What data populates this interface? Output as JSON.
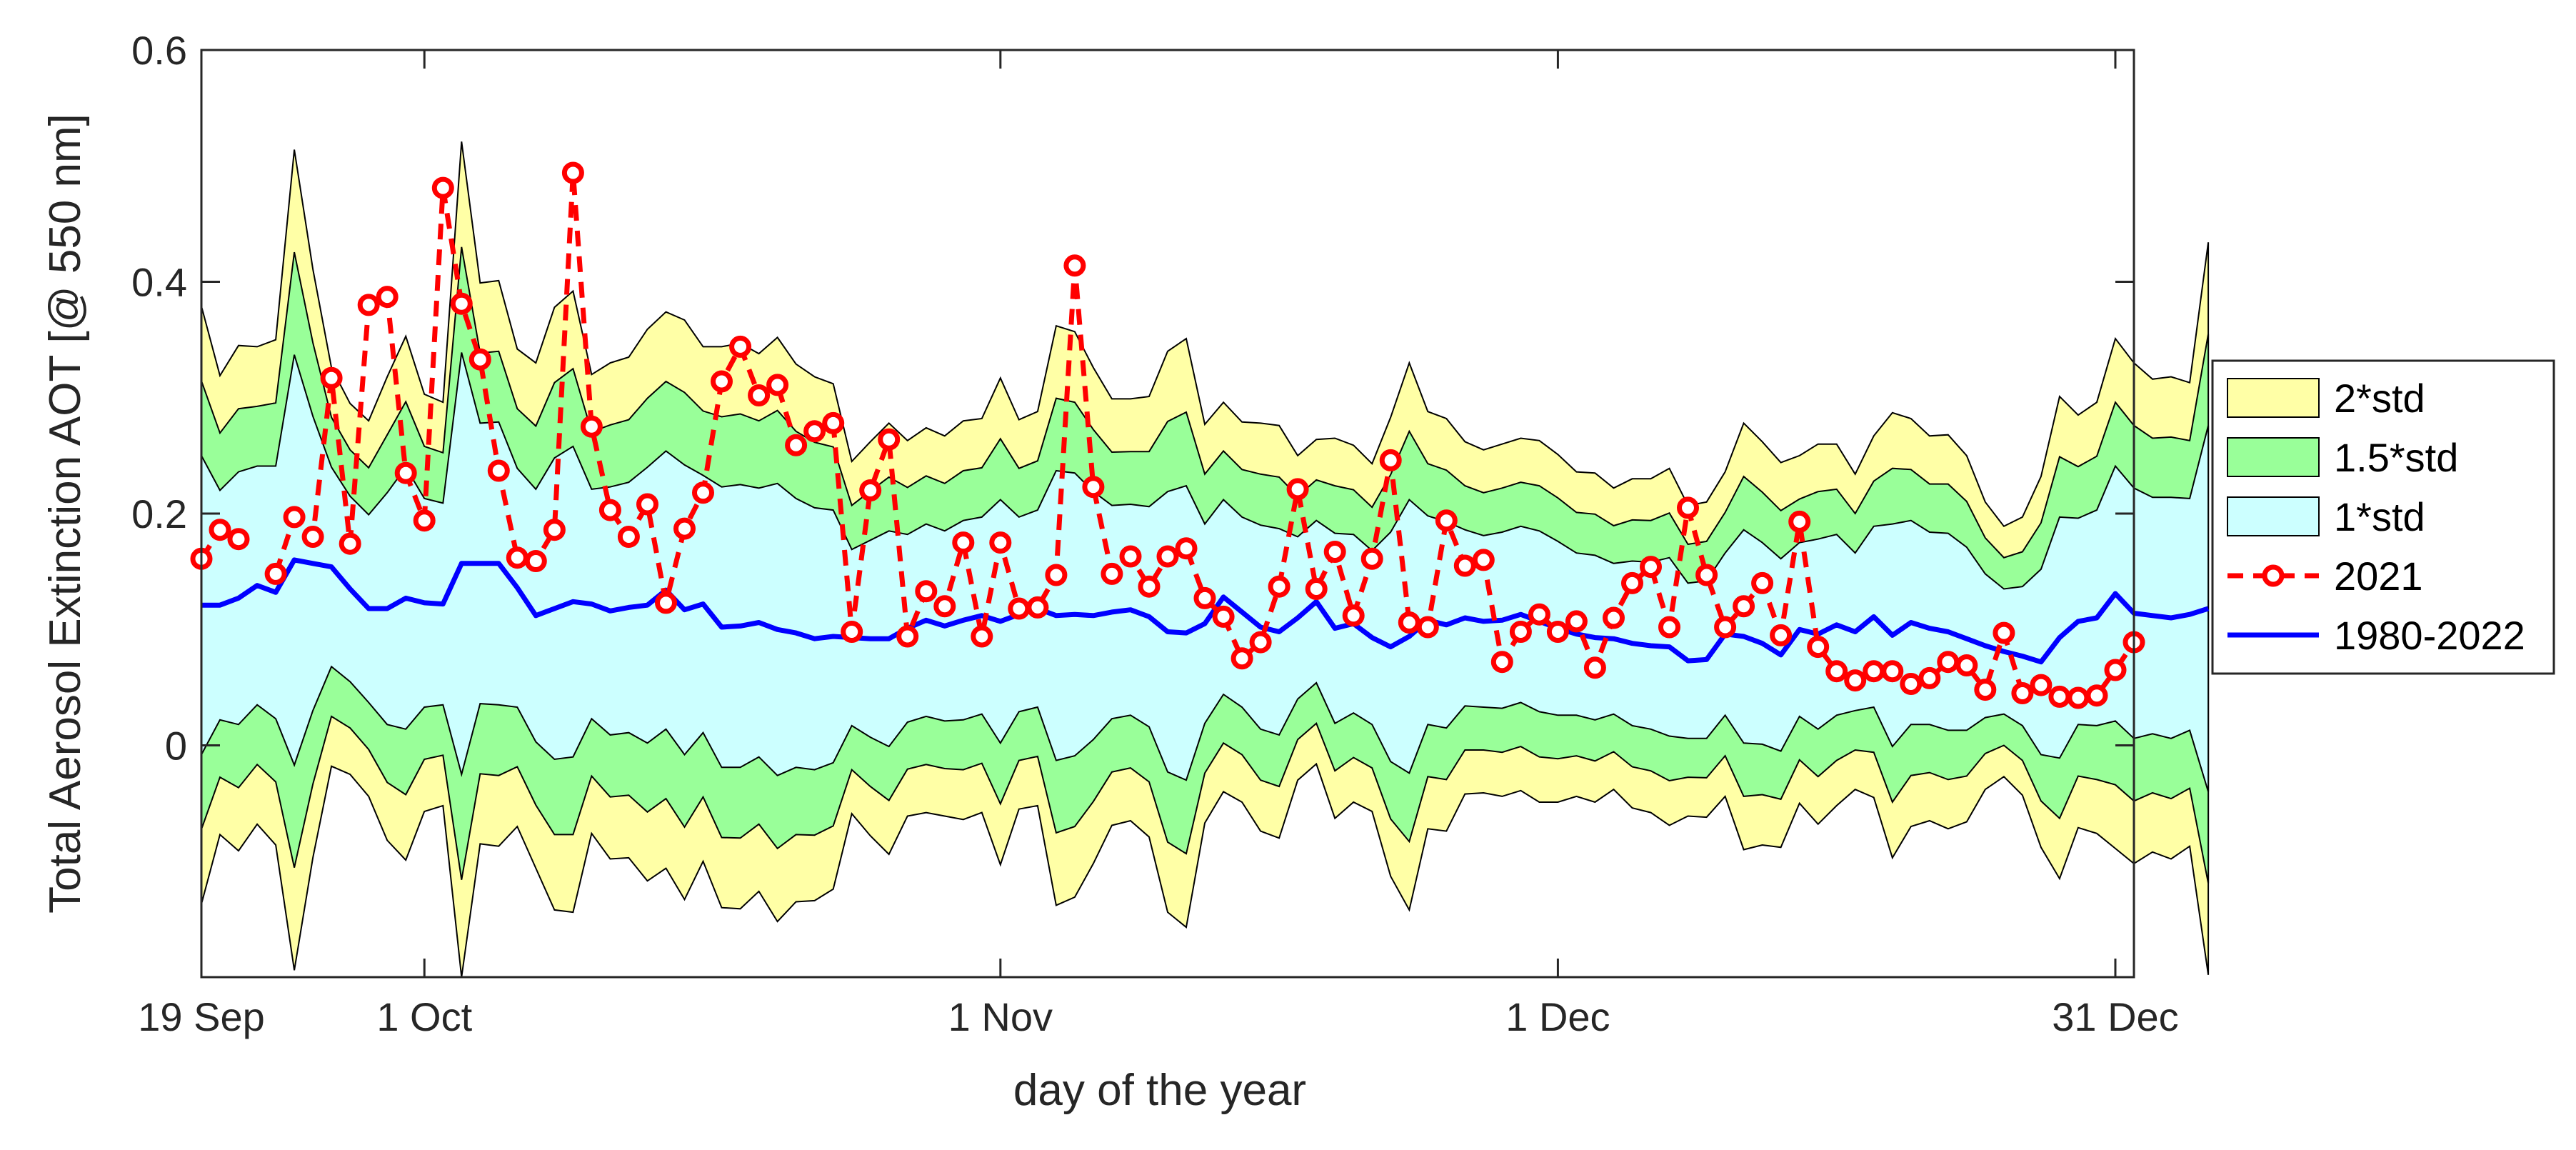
{
  "chart_data": {
    "type": "area",
    "xlabel": "day of the year",
    "ylabel": "Total Aerosol Extinction AOT [@ 550 nm]",
    "xlim": [
      "2021-09-19",
      "2022-01-01"
    ],
    "ylim": [
      -0.2,
      0.6
    ],
    "x_ticks": [
      {
        "date": "2021-09-19",
        "label": "19 Sep"
      },
      {
        "date": "2021-10-01",
        "label": "1 Oct"
      },
      {
        "date": "2021-11-01",
        "label": "1 Nov"
      },
      {
        "date": "2021-12-01",
        "label": "1 Dec"
      },
      {
        "date": "2021-12-31",
        "label": "31 Dec"
      }
    ],
    "y_ticks": [
      {
        "value": 0,
        "label": "0"
      },
      {
        "value": 0.2,
        "label": "0.2"
      },
      {
        "value": 0.4,
        "label": "0.4"
      },
      {
        "value": 0.6,
        "label": "0.6"
      }
    ],
    "legend_position": "right",
    "grid": false,
    "colors": {
      "band_2std": "#ffffa6",
      "band_15std": "#99ff99",
      "band_1std": "#ccffff",
      "series_2021": "#ff0000",
      "series_clim": "#0000ff"
    },
    "legend": [
      {
        "key": "std2",
        "label": "2*std"
      },
      {
        "key": "std15",
        "label": "1.5*std"
      },
      {
        "key": "std1",
        "label": "1*std"
      },
      {
        "key": "y2021",
        "label": "2021"
      },
      {
        "key": "clim",
        "label": "1980-2022"
      }
    ],
    "start_date": "2021-09-19",
    "series": [
      {
        "name": "1980-2022",
        "values": [
          0.121,
          0.121,
          0.127,
          0.138,
          0.132,
          0.16,
          0.157,
          0.154,
          0.135,
          0.118,
          0.118,
          0.127,
          0.123,
          0.122,
          0.157,
          0.157,
          0.157,
          0.136,
          0.112,
          0.118,
          0.124,
          0.122,
          0.116,
          0.119,
          0.121,
          0.134,
          0.117,
          0.122,
          0.102,
          0.103,
          0.106,
          0.1,
          0.097,
          0.092,
          0.094,
          0.093,
          0.092,
          0.092,
          0.101,
          0.108,
          0.103,
          0.108,
          0.112,
          0.107,
          0.113,
          0.118,
          0.112,
          0.113,
          0.112,
          0.115,
          0.117,
          0.111,
          0.098,
          0.097,
          0.105,
          0.128,
          0.115,
          0.102,
          0.098,
          0.11,
          0.124,
          0.101,
          0.105,
          0.093,
          0.085,
          0.094,
          0.108,
          0.104,
          0.11,
          0.107,
          0.108,
          0.113,
          0.107,
          0.101,
          0.096,
          0.093,
          0.092,
          0.088,
          0.086,
          0.085,
          0.073,
          0.074,
          0.096,
          0.094,
          0.088,
          0.078,
          0.1,
          0.096,
          0.104,
          0.098,
          0.111,
          0.095,
          0.106,
          0.101,
          0.098,
          0.092,
          0.086,
          0.081,
          0.077,
          0.072,
          0.093,
          0.107,
          0.11,
          0.131,
          0.114,
          0.112,
          0.11,
          0.113,
          0.118
        ]
      },
      {
        "name": "2021",
        "values": [
          0.161,
          0.186,
          0.178,
          null,
          0.148,
          0.197,
          0.18,
          0.317,
          0.174,
          0.38,
          0.387,
          0.235,
          0.194,
          0.481,
          0.381,
          0.333,
          0.237,
          0.162,
          0.159,
          0.186,
          0.494,
          0.275,
          0.203,
          0.18,
          0.208,
          0.123,
          0.187,
          0.218,
          0.314,
          0.344,
          0.302,
          0.311,
          0.259,
          0.271,
          0.278,
          0.098,
          0.22,
          0.264,
          0.094,
          0.133,
          0.12,
          0.175,
          0.094,
          0.175,
          0.118,
          0.119,
          0.147,
          0.414,
          0.223,
          0.148,
          0.163,
          0.137,
          0.163,
          0.17,
          0.127,
          0.111,
          0.075,
          0.089,
          0.137,
          0.221,
          0.135,
          0.167,
          0.112,
          0.161,
          0.246,
          0.106,
          0.102,
          0.194,
          0.155,
          0.16,
          0.072,
          0.098,
          0.113,
          0.098,
          0.107,
          0.067,
          0.11,
          0.14,
          0.154,
          0.102,
          0.205,
          0.147,
          0.102,
          0.12,
          0.14,
          0.095,
          0.193,
          0.085,
          0.064,
          0.056,
          0.064,
          0.064,
          0.053,
          0.058,
          0.072,
          0.069,
          0.048,
          0.097,
          0.045,
          0.052,
          0.042,
          0.041,
          0.043,
          0.065,
          0.089
        ]
      }
    ],
    "std_envelope": [
      0.129,
      0.099,
      0.109,
      0.103,
      0.109,
      0.177,
      0.127,
      0.086,
      0.08,
      0.081,
      0.1,
      0.113,
      0.09,
      0.087,
      0.182,
      0.121,
      0.122,
      0.103,
      0.109,
      0.13,
      0.134,
      0.099,
      0.107,
      0.108,
      0.119,
      0.12,
      0.125,
      0.111,
      0.121,
      0.122,
      0.116,
      0.126,
      0.116,
      0.113,
      0.109,
      0.076,
      0.085,
      0.093,
      0.081,
      0.083,
      0.082,
      0.086,
      0.085,
      0.105,
      0.084,
      0.085,
      0.125,
      0.122,
      0.107,
      0.092,
      0.091,
      0.095,
      0.121,
      0.127,
      0.086,
      0.084,
      0.082,
      0.088,
      0.089,
      0.07,
      0.07,
      0.082,
      0.077,
      0.075,
      0.099,
      0.118,
      0.09,
      0.089,
      0.076,
      0.074,
      0.076,
      0.076,
      0.078,
      0.075,
      0.07,
      0.071,
      0.065,
      0.071,
      0.072,
      0.077,
      0.067,
      0.068,
      0.07,
      0.092,
      0.087,
      0.083,
      0.075,
      0.082,
      0.078,
      0.068,
      0.078,
      0.096,
      0.088,
      0.083,
      0.085,
      0.079,
      0.062,
      0.054,
      0.06,
      0.08,
      0.104,
      0.089,
      0.093,
      0.11,
      0.108,
      0.102,
      0.104,
      0.1,
      0.158
    ]
  }
}
